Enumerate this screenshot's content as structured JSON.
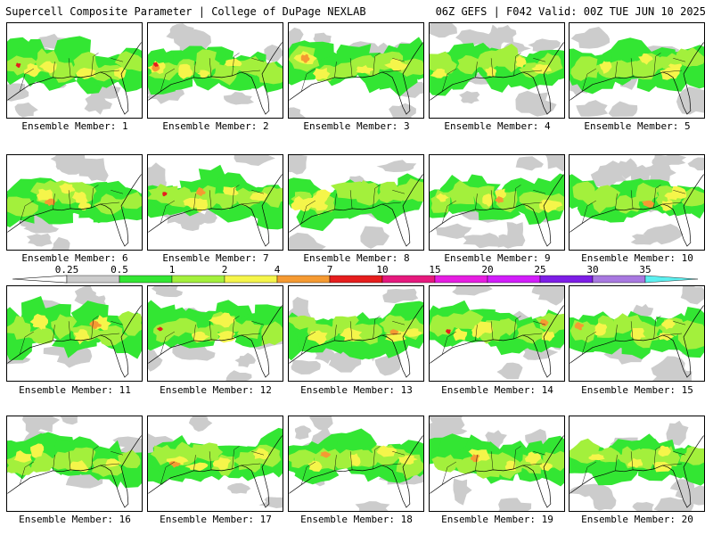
{
  "header": {
    "left_title": "Supercell Composite Parameter | College of DuPage NEXLAB",
    "right_title": "06Z GEFS | F042 Valid: 00Z TUE JUN 10 2025"
  },
  "member_label_prefix": "Ensemble Member:",
  "members": [
    {
      "number": "1"
    },
    {
      "number": "2"
    },
    {
      "number": "3"
    },
    {
      "number": "4"
    },
    {
      "number": "5"
    },
    {
      "number": "6"
    },
    {
      "number": "7"
    },
    {
      "number": "8"
    },
    {
      "number": "9"
    },
    {
      "number": "10"
    },
    {
      "number": "11"
    },
    {
      "number": "12"
    },
    {
      "number": "13"
    },
    {
      "number": "14"
    },
    {
      "number": "15"
    },
    {
      "number": "16"
    },
    {
      "number": "17"
    },
    {
      "number": "18"
    },
    {
      "number": "19"
    },
    {
      "number": "20"
    }
  ],
  "legend": {
    "ticks": [
      "0.25",
      "0.5",
      "1",
      "2",
      "4",
      "7",
      "10",
      "15",
      "20",
      "25",
      "30",
      "35"
    ],
    "colors": [
      "#cccccc",
      "#33e633",
      "#a3f03c",
      "#f5f54a",
      "#f59a32",
      "#e61e1e",
      "#e6197d",
      "#e61ee1",
      "#d21efa",
      "#7d1ee6",
      "#a878e0",
      "#5cf0f0"
    ]
  },
  "map_colors": {
    "gray": "#cccccc",
    "green": "#33e633",
    "lightgreen": "#a3f03c",
    "yellow": "#f5f54a",
    "orange": "#f59a32",
    "red": "#e61e1e"
  }
}
